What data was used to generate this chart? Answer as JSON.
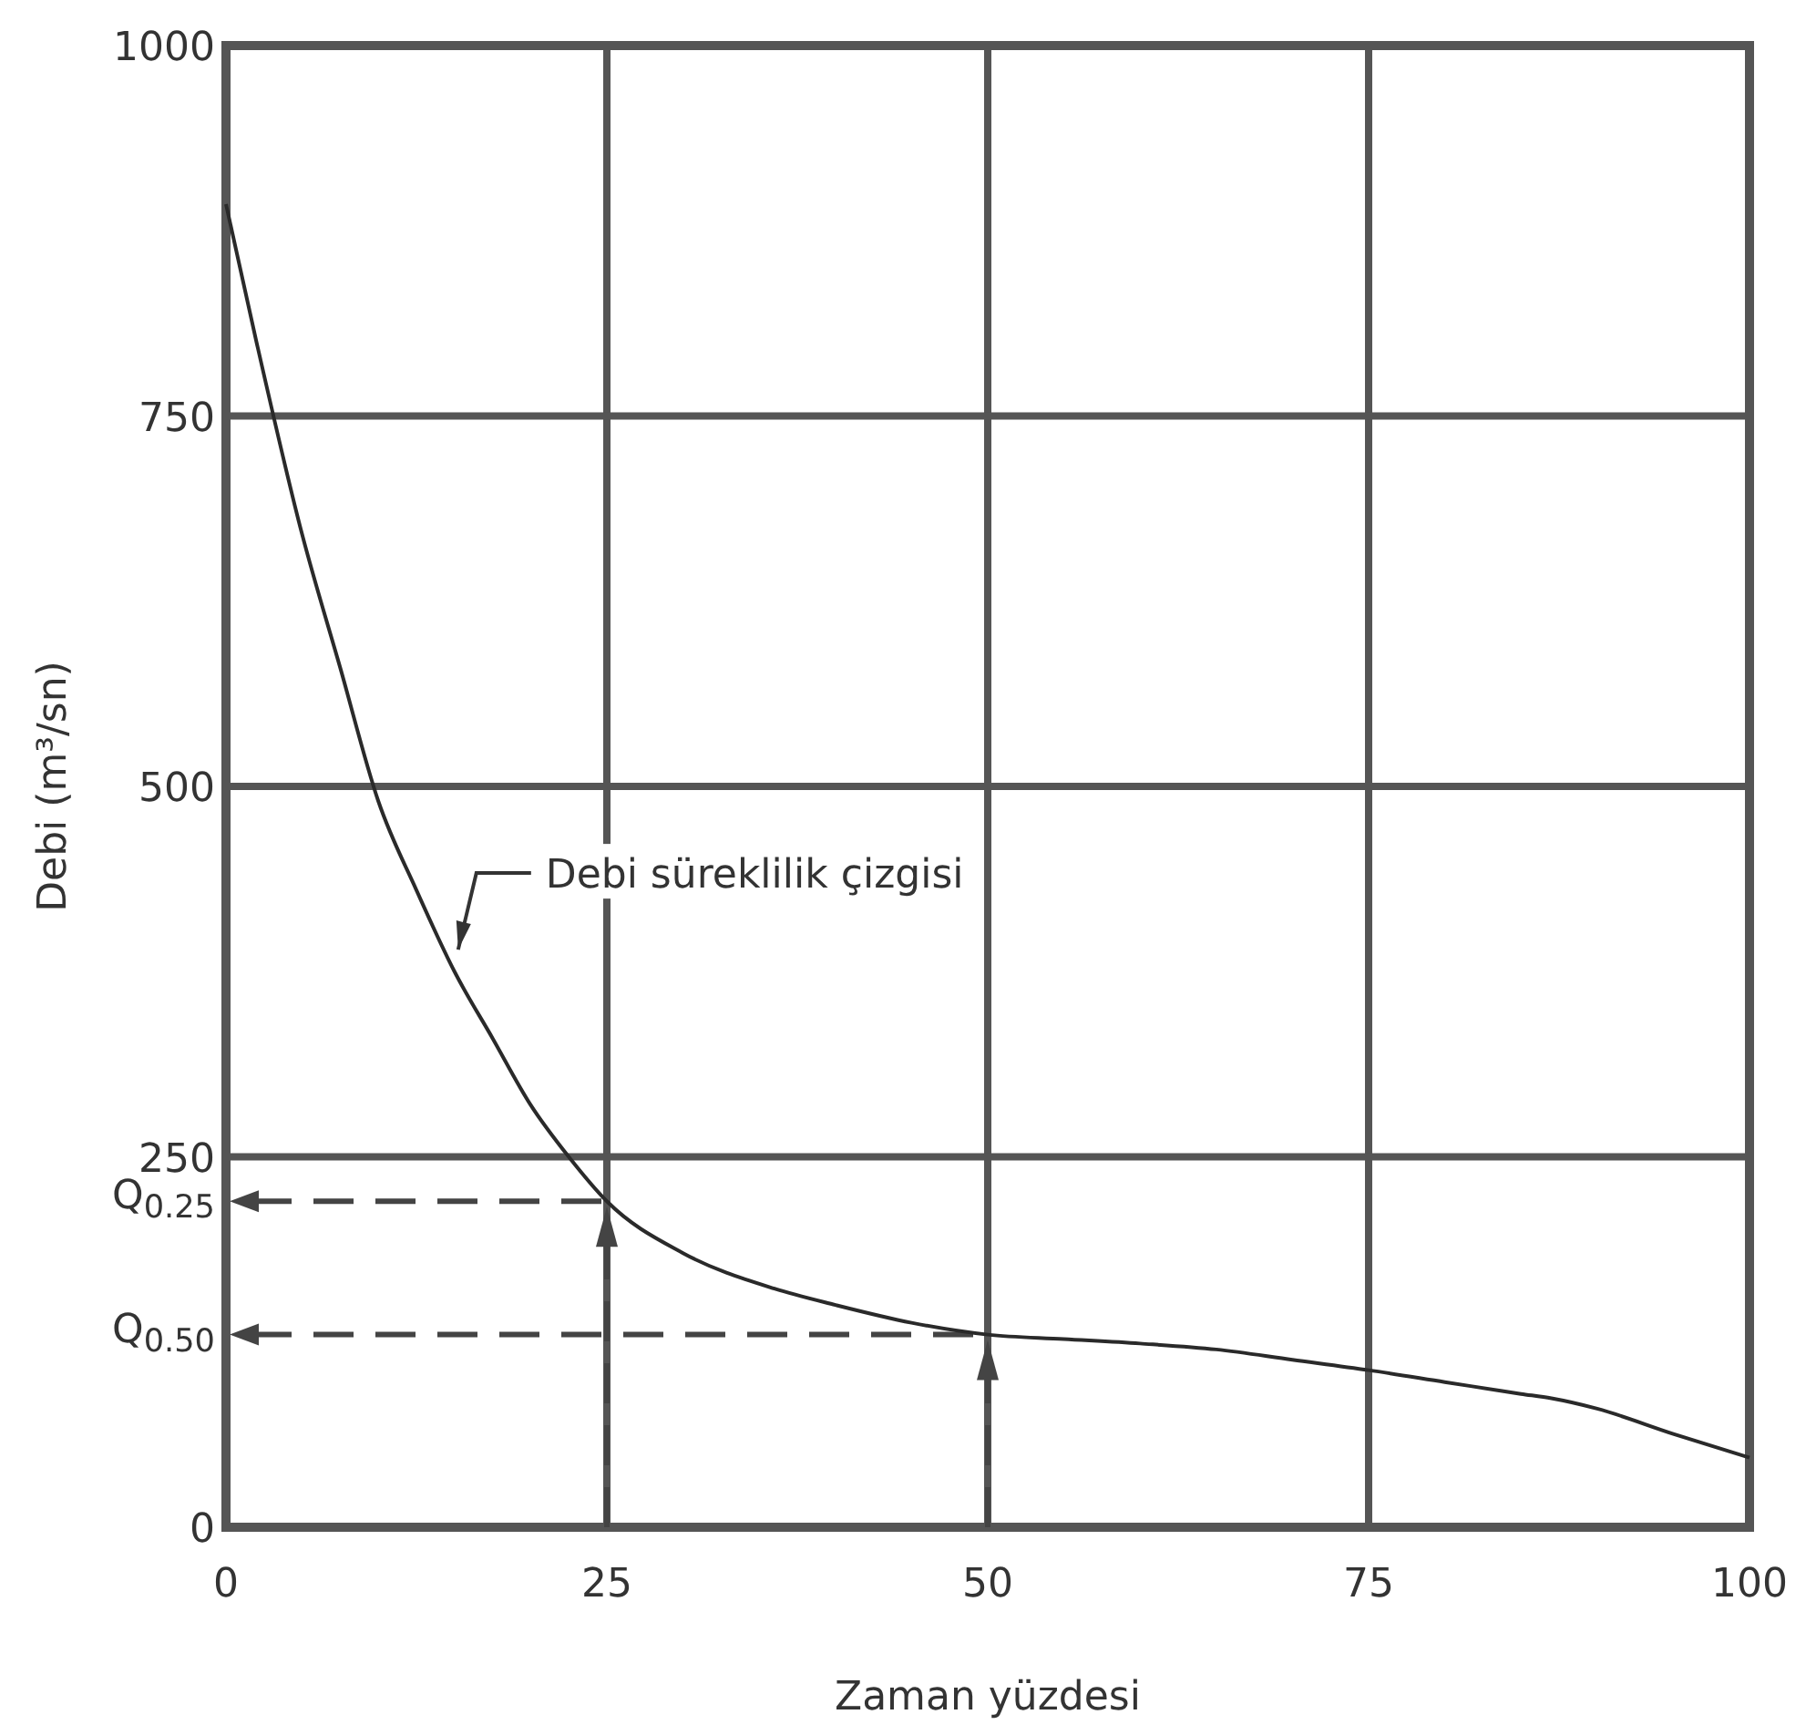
{
  "chart_data": {
    "type": "line",
    "xlabel": "Zaman yüzdesi",
    "ylabel": "Debi (m³/sn)",
    "xlim": [
      0,
      100
    ],
    "ylim": [
      0,
      1000
    ],
    "xticks": [
      0,
      25,
      50,
      75,
      100
    ],
    "yticks": [
      0,
      250,
      500,
      750,
      1000
    ],
    "grid": true,
    "line_style": "solid",
    "series": [
      {
        "x": [
          0,
          2,
          5,
          7.5,
          10,
          12.5,
          15,
          17.5,
          20,
          22.5,
          25,
          30,
          36,
          40,
          45,
          50,
          55,
          60,
          65,
          70,
          75,
          80,
          85,
          87,
          90,
          95,
          100
        ],
        "values": [
          893,
          800,
          670,
          580,
          490,
          430,
          375,
          330,
          285,
          250,
          220,
          185,
          161,
          150,
          138,
          130,
          127,
          124,
          120,
          113,
          106,
          98,
          90,
          87,
          80,
          63,
          47
        ],
        "color": "#2a2a2a"
      }
    ],
    "ref_lines": [
      {
        "axis": "y",
        "value": 220,
        "label": "Q$_{0.25}$",
        "color": "#444444",
        "line_style": "dashed"
      },
      {
        "axis": "y",
        "value": 130,
        "label": "Q$_{0.50}$",
        "color": "#444444",
        "line_style": "dashed"
      },
      {
        "axis": "x",
        "value": 25,
        "label": null,
        "color": "#444444",
        "line_style": "dashed"
      },
      {
        "axis": "x",
        "value": 50,
        "label": null,
        "color": "#444444",
        "line_style": "dashed"
      }
    ],
    "annotations": [
      {
        "text": "Debi süreklilik çizgisi",
        "x": 15,
        "y": 380
      }
    ]
  }
}
